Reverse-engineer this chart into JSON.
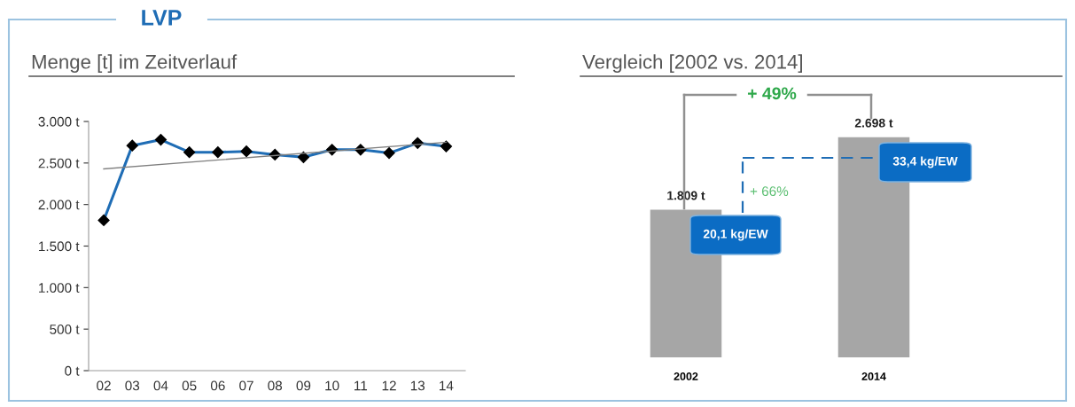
{
  "chart_data": [
    {
      "type": "line",
      "title": "LVP",
      "subtitle": "Menge [t] im Zeitverlauf",
      "categories": [
        "02",
        "03",
        "04",
        "05",
        "06",
        "07",
        "08",
        "09",
        "10",
        "11",
        "12",
        "13",
        "14"
      ],
      "series": [
        {
          "color": "#1f6db5",
          "marker": "diamond",
          "values": [
            1810,
            2710,
            2780,
            2630,
            2630,
            2640,
            2600,
            2570,
            2660,
            2660,
            2620,
            2740,
            2700
          ]
        },
        {
          "color": "#808080",
          "marker": "none",
          "values": [
            2430,
            null,
            null,
            null,
            null,
            null,
            null,
            null,
            null,
            null,
            null,
            null,
            2750
          ]
        }
      ],
      "ylim": [
        0,
        3000
      ],
      "yticks": [
        {
          "value": 0,
          "label": "0 t"
        },
        {
          "value": 500,
          "label": "500 t"
        },
        {
          "value": 1000,
          "label": "1.000 t"
        },
        {
          "value": 1500,
          "label": "1.500 t"
        },
        {
          "value": 2000,
          "label": "2.000 t"
        },
        {
          "value": 2500,
          "label": "2.500 t"
        },
        {
          "value": 3000,
          "label": "3.000 t"
        }
      ],
      "grid": false,
      "legend": false
    },
    {
      "type": "bar",
      "title": "Vergleich [2002 vs. 2014]",
      "categories": [
        "2002",
        "2014"
      ],
      "values": [
        1809,
        2698
      ],
      "color": "#a6a6a6",
      "value_labels": [
        "1.809 t",
        "2.698 t"
      ],
      "tick_labels": "x",
      "annotations": [
        "+ 49%",
        "+ 66%",
        "20,1 kg/EW",
        "33,4 kg/EW"
      ]
    }
  ]
}
